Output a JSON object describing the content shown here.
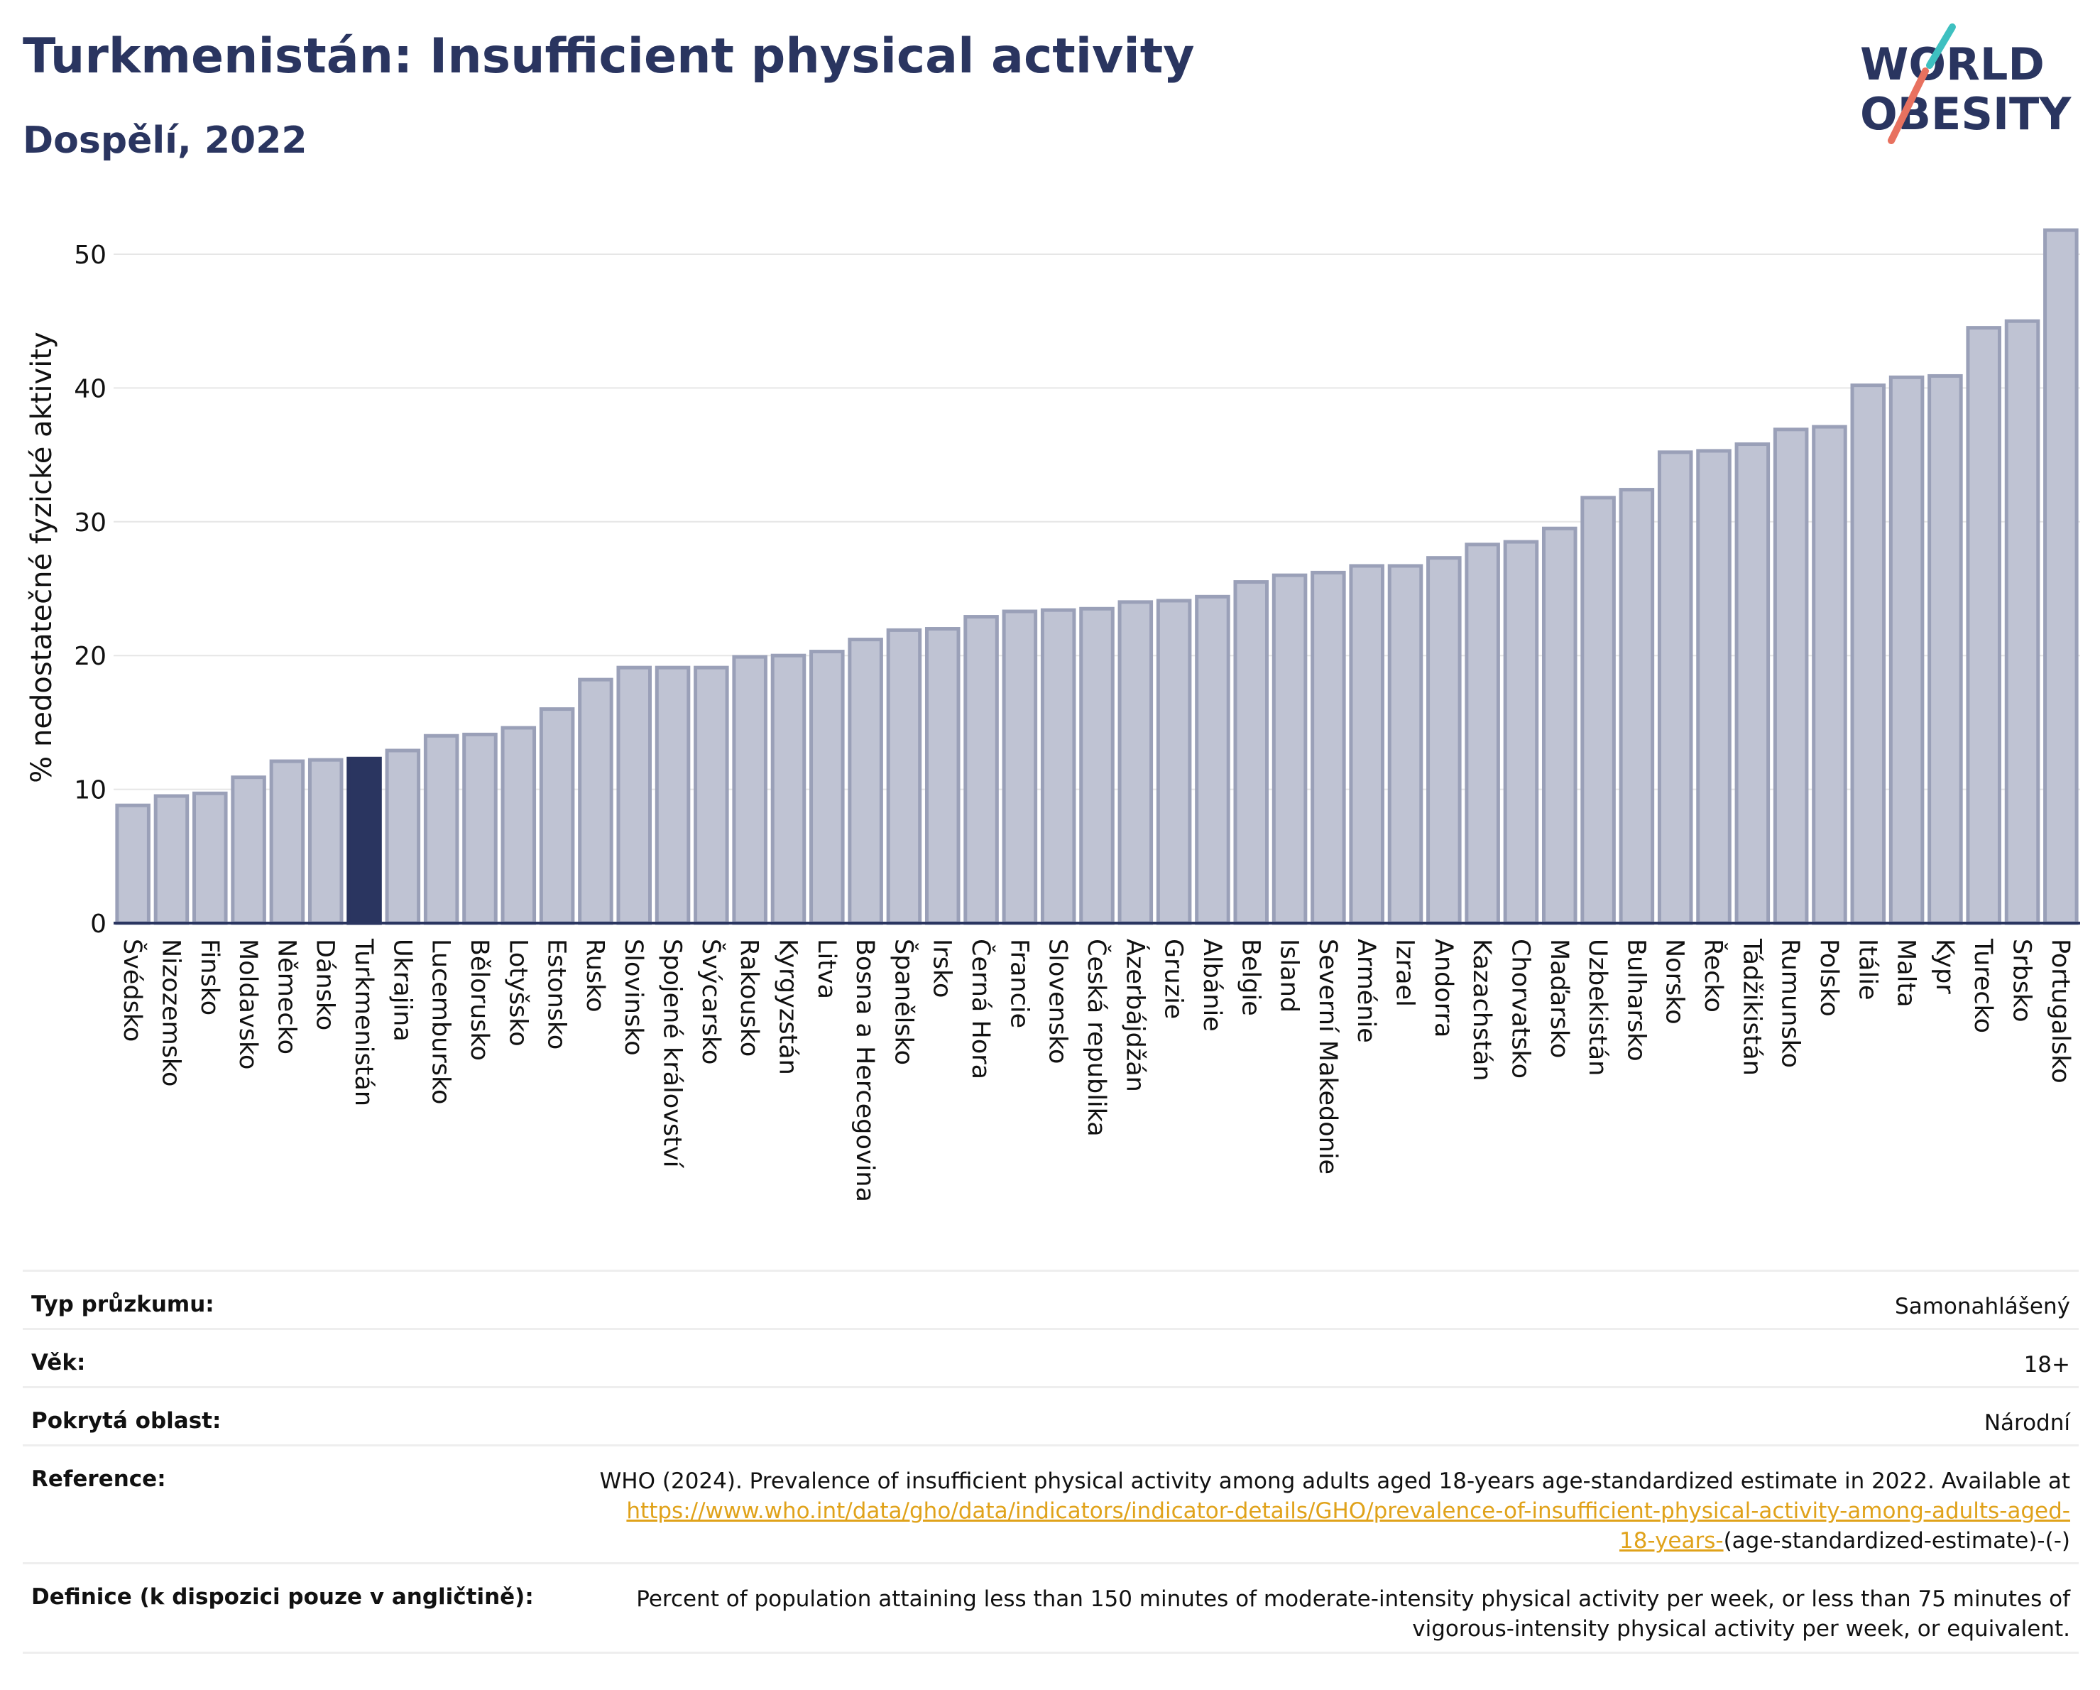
{
  "header": {
    "title": "Turkmenistán: Insufficient physical activity",
    "subtitle": "Dospělí, 2022"
  },
  "logo": {
    "line1": "WORLD",
    "line2": "OBESITY",
    "accent_teal": "#3ec0c0",
    "accent_coral": "#e8715f"
  },
  "colors": {
    "bar": "#bfc3d3",
    "bar_stroke": "#9aa0b8",
    "highlight": "#2a3560",
    "axis": "#2a3560"
  },
  "chart_data": {
    "type": "bar",
    "title": "Turkmenistán: Insufficient physical activity",
    "subtitle": "Dospělí, 2022",
    "ylabel": "% nedostatečné fyzické aktivity",
    "xlabel": "",
    "ylim": [
      0,
      52
    ],
    "yticks": [
      0,
      10,
      20,
      30,
      40,
      50
    ],
    "grid": true,
    "highlight": "Turkmenistán",
    "categories": [
      "Švédsko",
      "Nizozemsko",
      "Finsko",
      "Moldavsko",
      "Německo",
      "Dánsko",
      "Turkmenistán",
      "Ukrajina",
      "Lucembursko",
      "Bělorusko",
      "Lotyšsko",
      "Estonsko",
      "Rusko",
      "Slovinsko",
      "Spojené království",
      "Švýcarsko",
      "Rakousko",
      "Kyrgyzstán",
      "Litva",
      "Bosna a Hercegovina",
      "Španělsko",
      "Irsko",
      "Černá Hora",
      "Francie",
      "Slovensko",
      "Česká republika",
      "Ázerbájdžán",
      "Gruzie",
      "Albánie",
      "Belgie",
      "Island",
      "Severní Makedonie",
      "Arménie",
      "Izrael",
      "Andorra",
      "Kazachstán",
      "Chorvatsko",
      "Maďarsko",
      "Uzbekistán",
      "Bulharsko",
      "Norsko",
      "Řecko",
      "Tádžikistán",
      "Rumunsko",
      "Polsko",
      "Itálie",
      "Malta",
      "Kypr",
      "Turecko",
      "Srbsko",
      "Portugalsko"
    ],
    "values": [
      8.8,
      9.5,
      9.7,
      10.9,
      12.1,
      12.2,
      12.3,
      12.9,
      14.0,
      14.1,
      14.6,
      16.0,
      18.2,
      19.1,
      19.1,
      19.1,
      19.9,
      20.0,
      20.3,
      21.2,
      21.9,
      22.0,
      22.9,
      23.3,
      23.4,
      23.5,
      24.0,
      24.1,
      24.4,
      25.5,
      26.0,
      26.2,
      26.7,
      26.7,
      27.3,
      28.3,
      28.5,
      29.5,
      31.8,
      32.4,
      35.2,
      35.3,
      35.8,
      36.9,
      37.1,
      40.2,
      40.8,
      40.9,
      44.5,
      45.0,
      51.8
    ]
  },
  "info": {
    "survey_label": "Typ průzkumu:",
    "survey_value": "Samonahlášený",
    "age_label": "Věk:",
    "age_value": "18+",
    "area_label": "Pokrytá oblast:",
    "area_value": "Národní",
    "reference_label": "Reference:",
    "reference_text": "WHO (2024). Prevalence of insufficient physical activity among adults aged 18-years age-standardized estimate in 2022. Available at",
    "reference_link_line1": "https://www.who.int/data/gho/data/indicators/indicator-details/GHO/prevalence-of-insufficient-physical-activity-among-adults-aged-",
    "reference_link_line2": "18-years-",
    "reference_tail": "(age-standardized-estimate)-(-)",
    "definition_label": "Definice (k dispozici pouze v angličtině):",
    "definition_line1": "Percent of population attaining less than 150 minutes of moderate-intensity physical activity per week, or less than 75 minutes of",
    "definition_line2": "vigorous-intensity physical activity per week, or equivalent."
  }
}
